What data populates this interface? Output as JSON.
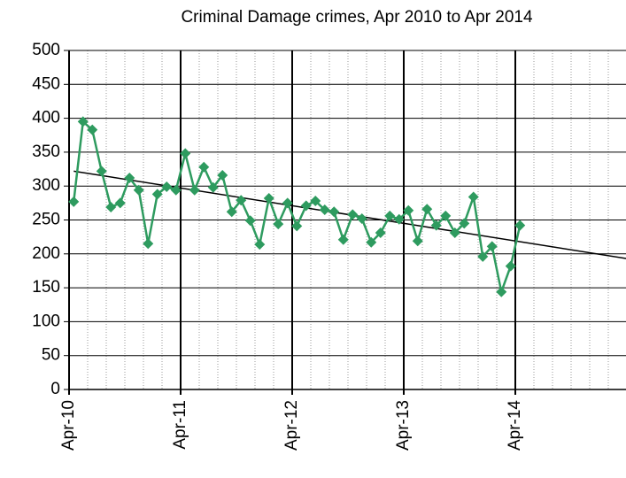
{
  "chart_data": {
    "type": "line",
    "title": "Criminal Damage crimes, Apr 2010 to Apr 2014",
    "xlim": [
      0,
      60
    ],
    "xticks": [
      {
        "value": 0,
        "label": "Apr-10"
      },
      {
        "value": 12,
        "label": "Apr-11"
      },
      {
        "value": 24,
        "label": "Apr-12"
      },
      {
        "value": 36,
        "label": "Apr-13"
      },
      {
        "value": 48,
        "label": "Apr-14"
      },
      60
    ],
    "xminorticks": [
      2,
      4,
      6,
      8,
      10,
      14,
      16,
      18,
      20,
      22,
      26,
      28,
      30,
      32,
      34,
      38,
      40,
      42,
      44,
      46,
      50,
      52,
      54,
      56,
      58
    ],
    "ylim": [
      0,
      500
    ],
    "yticks": [
      0,
      50,
      100,
      150,
      200,
      250,
      300,
      350,
      400,
      450,
      500
    ],
    "grid": true,
    "series": [
      {
        "color": "#2e9b5f",
        "x": [
          0.5,
          1.5,
          2.5,
          3.5,
          4.5,
          5.5,
          6.5,
          7.5,
          8.5,
          9.5,
          10.5,
          11.5,
          12.5,
          13.5,
          14.5,
          15.5,
          16.5,
          17.5,
          18.5,
          19.5,
          20.5,
          21.5,
          22.5,
          23.5,
          24.5,
          25.5,
          26.5,
          27.5,
          28.5,
          29.5,
          30.5,
          31.5,
          32.5,
          33.5,
          34.5,
          35.5,
          36.5,
          37.5,
          38.5,
          39.5,
          40.5,
          41.5,
          42.5,
          43.5,
          44.5,
          45.5,
          46.5,
          47.5,
          48.5
        ],
        "values": [
          277,
          395,
          383,
          322,
          269,
          275,
          312,
          294,
          215,
          288,
          299,
          294,
          348,
          294,
          328,
          298,
          316,
          262,
          279,
          249,
          214,
          282,
          244,
          275,
          241,
          271,
          278,
          265,
          262,
          221,
          258,
          252,
          217,
          231,
          256,
          251,
          264,
          219,
          266,
          242,
          256,
          231,
          245,
          284,
          196,
          211,
          144,
          182,
          242
        ]
      }
    ],
    "trendline": {
      "color": "#000000",
      "x": [
        0.5,
        60
      ],
      "values": [
        322,
        193
      ]
    }
  }
}
